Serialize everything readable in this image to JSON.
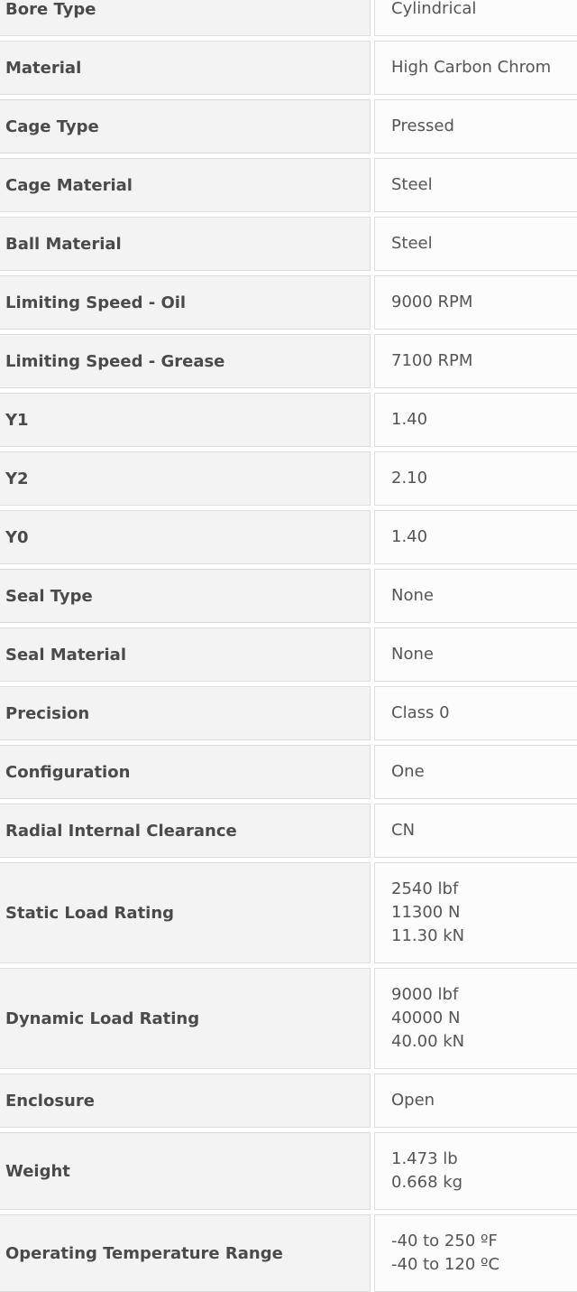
{
  "table": {
    "rows": [
      {
        "label": "Bore Type",
        "value": [
          "Cylindrical"
        ]
      },
      {
        "label": "Material",
        "value": [
          "High Carbon Chrom"
        ]
      },
      {
        "label": "Cage Type",
        "value": [
          "Pressed"
        ]
      },
      {
        "label": "Cage Material",
        "value": [
          "Steel"
        ]
      },
      {
        "label": "Ball Material",
        "value": [
          "Steel"
        ]
      },
      {
        "label": "Limiting Speed - Oil",
        "value": [
          "9000 RPM"
        ]
      },
      {
        "label": "Limiting Speed - Grease",
        "value": [
          "7100 RPM"
        ]
      },
      {
        "label": "Y1",
        "value": [
          "1.40"
        ]
      },
      {
        "label": "Y2",
        "value": [
          "2.10"
        ]
      },
      {
        "label": "Y0",
        "value": [
          "1.40"
        ]
      },
      {
        "label": "Seal Type",
        "value": [
          "None"
        ]
      },
      {
        "label": "Seal Material",
        "value": [
          "None"
        ]
      },
      {
        "label": "Precision",
        "value": [
          "Class 0"
        ]
      },
      {
        "label": "Configuration",
        "value": [
          "One"
        ]
      },
      {
        "label": "Radial Internal Clearance",
        "value": [
          "CN"
        ]
      },
      {
        "label": "Static Load Rating",
        "value": [
          "2540 lbf",
          "11300 N",
          "11.30 kN"
        ]
      },
      {
        "label": "Dynamic Load Rating",
        "value": [
          "9000 lbf",
          "40000 N",
          "40.00 kN"
        ]
      },
      {
        "label": "Enclosure",
        "value": [
          "Open"
        ]
      },
      {
        "label": "Weight",
        "value": [
          "1.473 lb",
          "0.668 kg"
        ]
      },
      {
        "label": "Operating Temperature Range",
        "value": [
          "-40 to 250 ºF",
          "-40 to 120 ºC"
        ]
      }
    ]
  }
}
